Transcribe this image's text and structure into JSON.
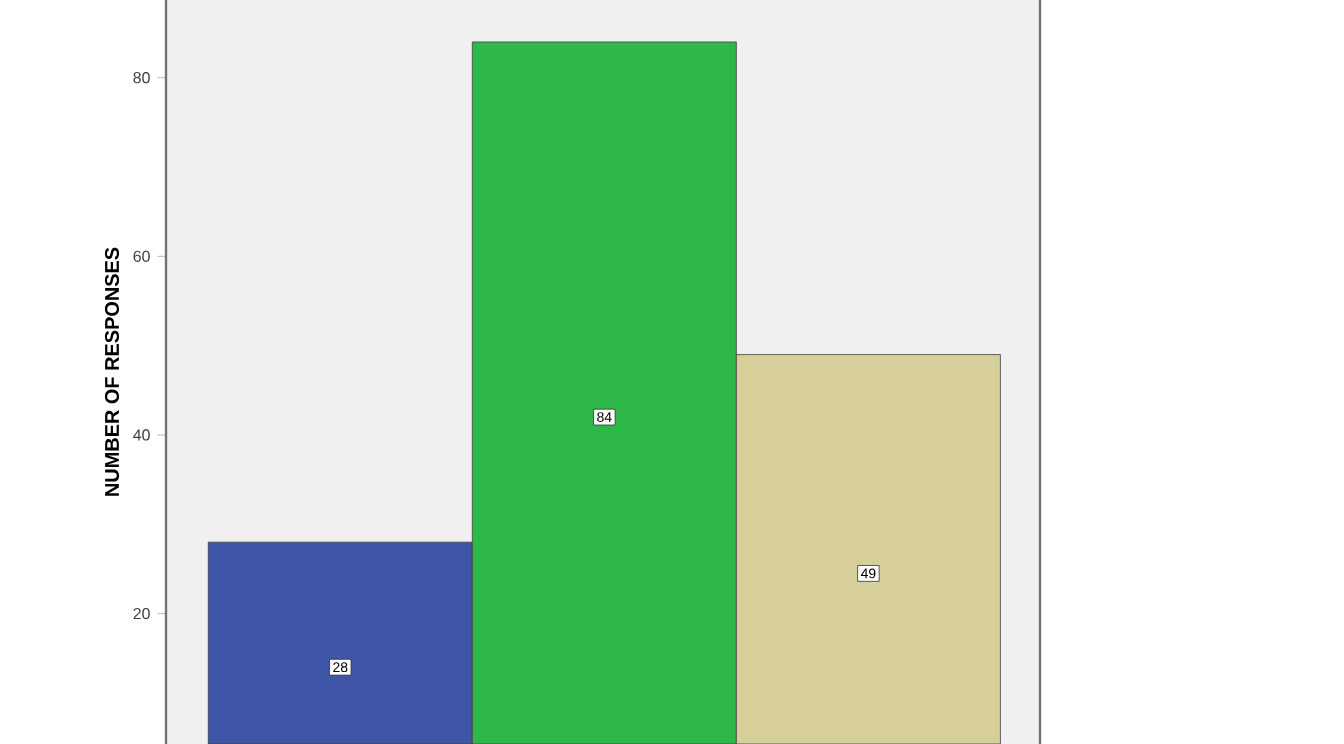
{
  "chart_data": {
    "type": "bar",
    "ylabel": "NUMBER OF RESPONSES",
    "categories": [
      null,
      null,
      null
    ],
    "values": [
      28,
      84,
      49
    ],
    "colors": [
      "#3f56a8",
      "#2eb84a",
      "#d6cf99"
    ],
    "ylim": [
      5.4,
      88.7
    ],
    "yticks": [
      20,
      40,
      60,
      80
    ],
    "data_labels": true,
    "grid": false
  }
}
